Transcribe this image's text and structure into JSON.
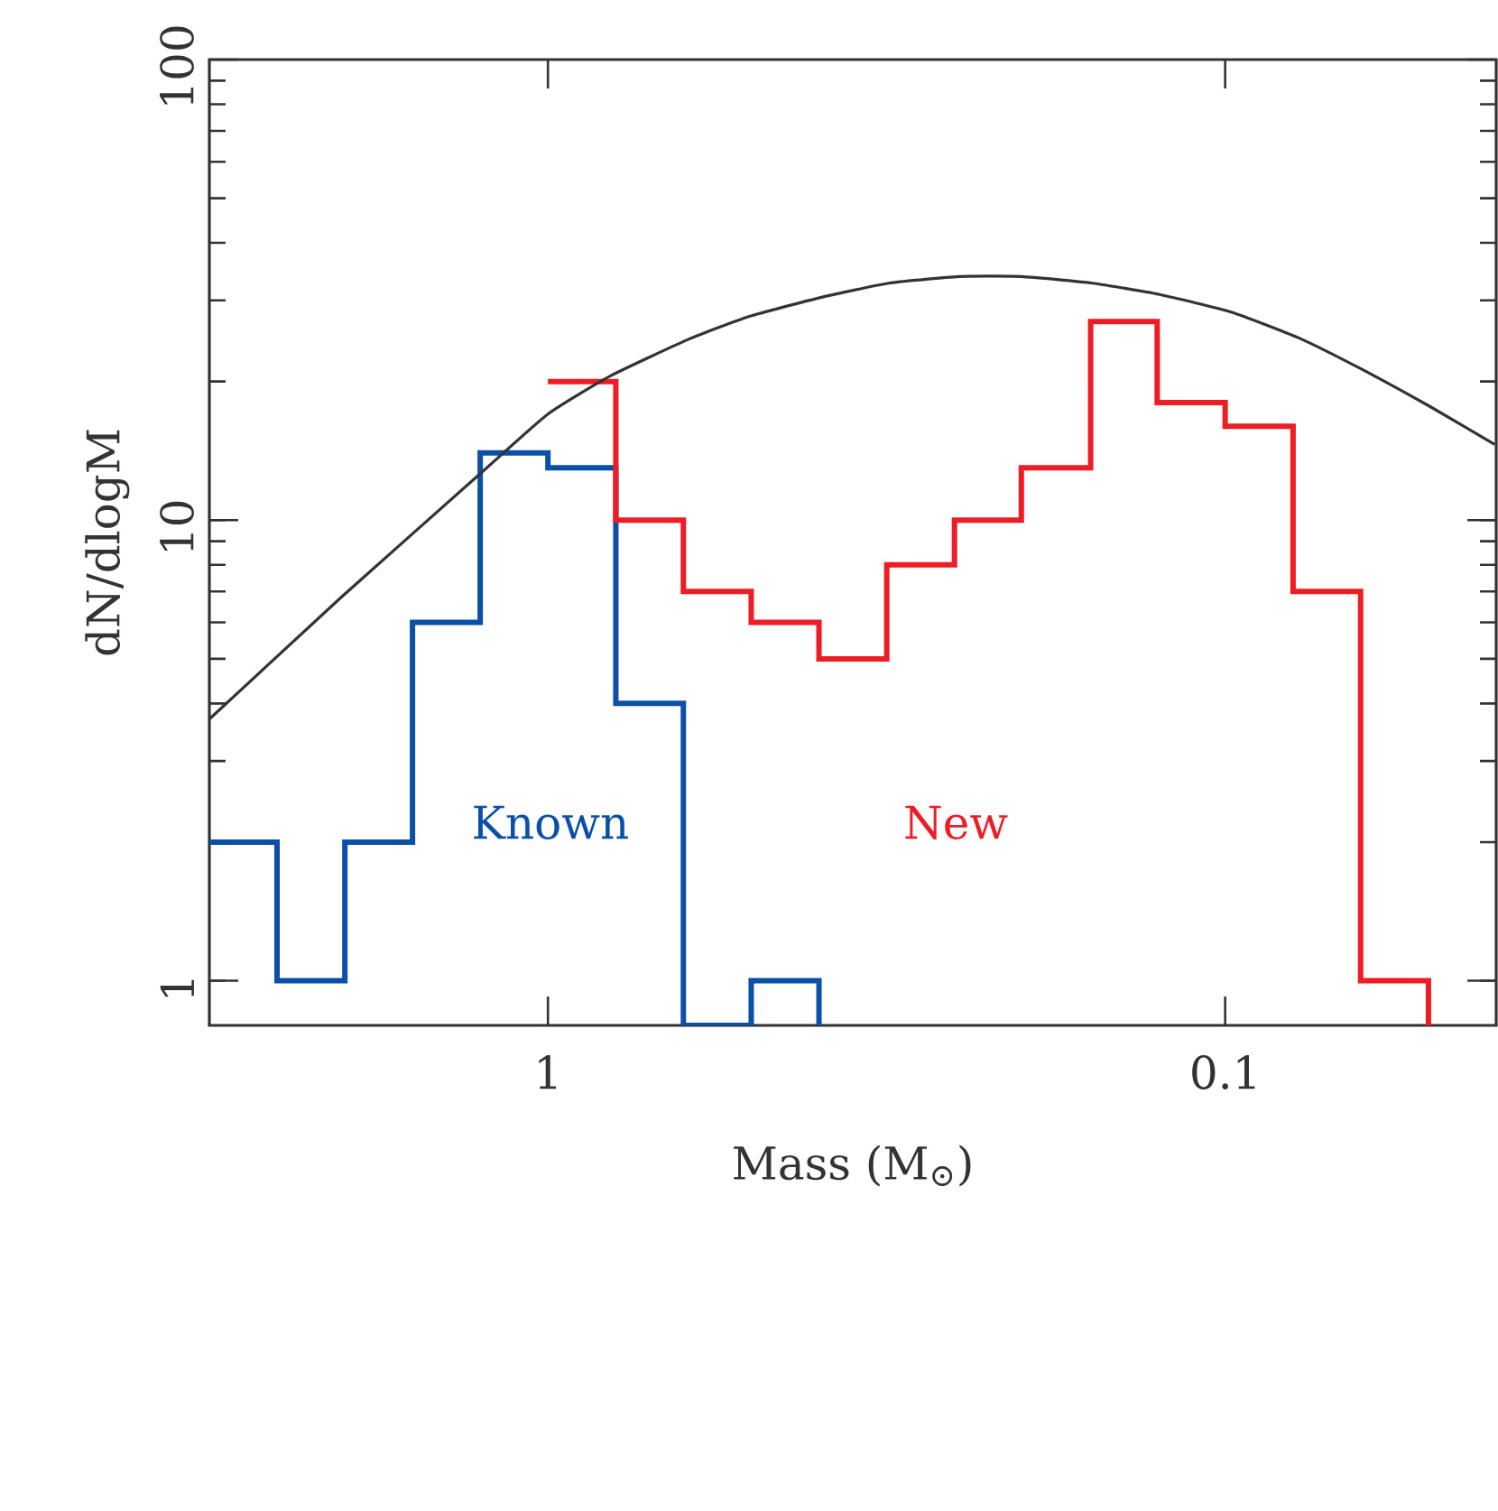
{
  "chart_data": {
    "type": "histogram",
    "xlabel": "Mass (M$_{⊙}$)",
    "ylabel": "dN/dlogM",
    "log": "xy",
    "xlim": [
      3.162,
      0.0398
    ],
    "ylim": [
      0.8,
      100
    ],
    "xticks": [
      1,
      0.1
    ],
    "yticks": [
      1,
      10,
      100
    ],
    "series": [
      {
        "name": "Known",
        "color": "#0a4fa8",
        "bins": [
          3.162,
          2.512,
          1.995,
          1.585,
          1.259,
          1.0,
          0.794,
          0.631,
          0.501,
          0.398
        ],
        "values": [
          2,
          1,
          2,
          6,
          14,
          13,
          4,
          null,
          1
        ]
      },
      {
        "name": "New",
        "color": "#ee1c25",
        "bins": [
          1.0,
          0.794,
          0.631,
          0.501,
          0.398,
          0.316,
          0.251,
          0.2,
          0.158,
          0.126,
          0.1,
          0.0794,
          0.0631,
          0.0501
        ],
        "values": [
          20,
          10,
          7,
          6,
          5,
          8,
          10,
          13,
          27,
          18,
          16,
          7,
          1
        ]
      },
      {
        "type": "line",
        "color": "#333333",
        "x": [
          3.16,
          2.02,
          1.26,
          1.0,
          0.807,
          0.62,
          0.504,
          0.397,
          0.314,
          0.247,
          0.2,
          0.157,
          0.125,
          0.098,
          0.078,
          0.063,
          0.05,
          0.04
        ],
        "values": [
          3.7,
          6.8,
          12.6,
          17.0,
          20.6,
          24.7,
          27.7,
          30.4,
          32.7,
          33.8,
          33.8,
          32.7,
          30.9,
          28.3,
          24.9,
          21.3,
          17.7,
          14.6
        ]
      }
    ]
  }
}
